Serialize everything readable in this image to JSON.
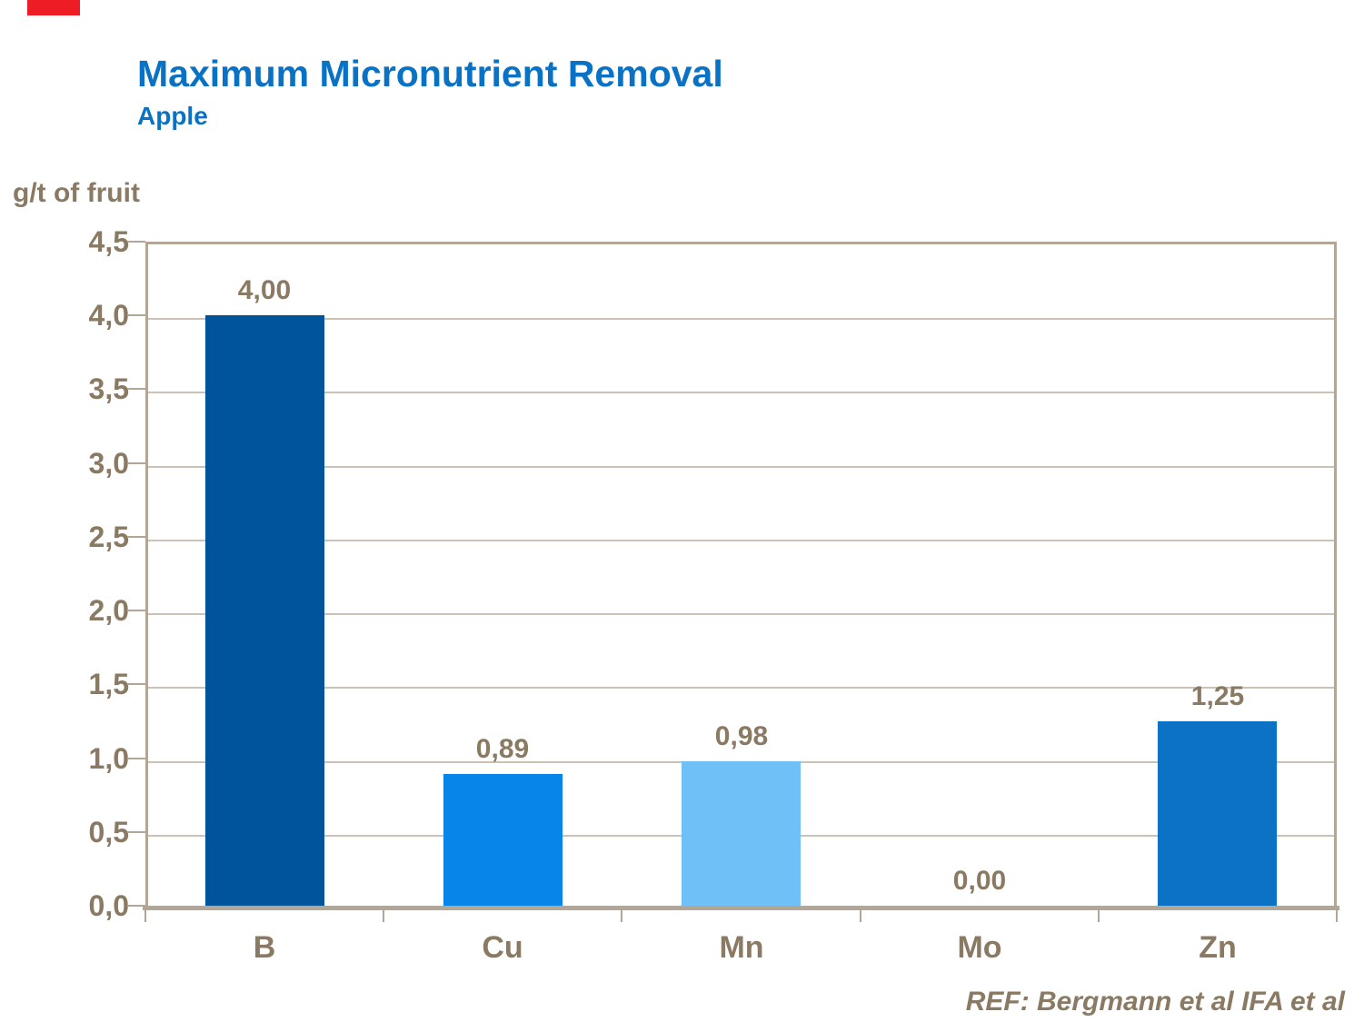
{
  "slide": {
    "accent_color": "#ee1c25"
  },
  "header": {
    "title": "Maximum Micronutrient Removal",
    "subtitle": "Apple",
    "title_color": "#0a72c4"
  },
  "footer": {
    "ref_text": "REF: Bergmann et al IFA et al"
  },
  "chart_data": {
    "type": "bar",
    "title": "Maximum Micronutrient Removal",
    "subtitle": "Apple",
    "ylabel": "g/t of fruit",
    "categories": [
      "B",
      "Cu",
      "Mn",
      "Mo",
      "Zn"
    ],
    "values": [
      4.0,
      0.89,
      0.98,
      0.0,
      1.25
    ],
    "value_labels": [
      "4,00",
      "0,89",
      "0,98",
      "0,00",
      "1,25"
    ],
    "bar_colors": [
      "#00559a",
      "#0885e8",
      "#6fc0f7",
      "#0b72c4",
      "#0b72c4"
    ],
    "ylim": [
      0,
      4.5
    ],
    "ytick_step": 0.5,
    "ytick_labels": [
      "0,0",
      "0,5",
      "1,0",
      "1,5",
      "2,0",
      "2,5",
      "3,0",
      "3,5",
      "4,0",
      "4,5"
    ],
    "grid": true,
    "legend": false,
    "decimal_separator": ",",
    "annotation": "REF: Bergmann et al IFA et al",
    "colors": {
      "text": "#8a7a63",
      "axis": "#b2a797",
      "grid": "#cbc2b4"
    }
  }
}
